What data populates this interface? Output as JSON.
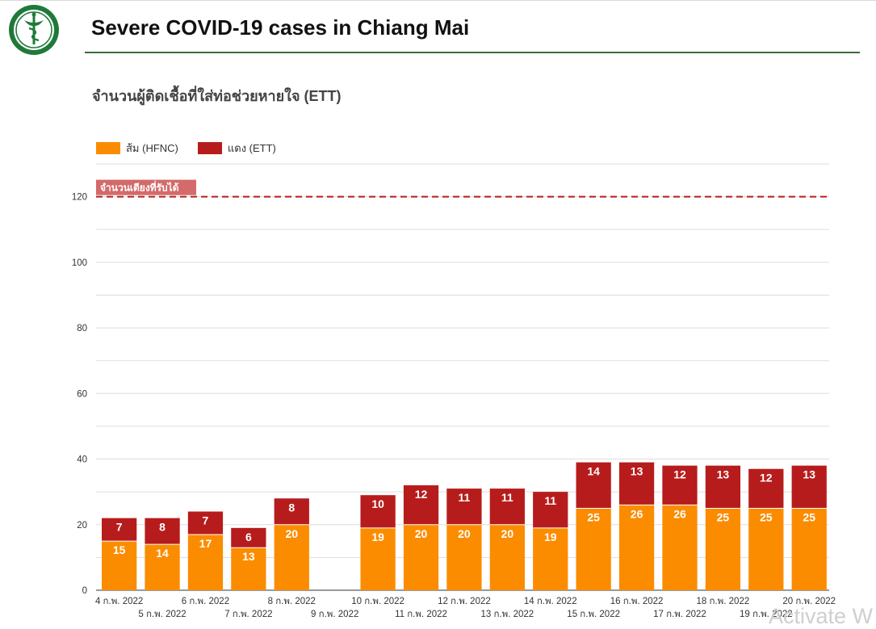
{
  "header": {
    "title": "Severe COVID-19 cases in Chiang Mai",
    "logo_icon": "health-department-caduceus-logo"
  },
  "watermark": "Activate W",
  "colors": {
    "hfnc": "#fb8c00",
    "ett": "#b71c1c",
    "reference_line": "#b71c1c",
    "reference_label_bg": "#d46a6a",
    "rule": "#3a6b35"
  },
  "chart_data": {
    "type": "bar",
    "stacked": true,
    "title": "จำนวนผู้ติดเชื้อที่ใส่ท่อช่วยหายใจ (ETT)",
    "xlabel": "",
    "ylabel": "",
    "ylim": [
      0,
      130
    ],
    "yticks": [
      0,
      20,
      40,
      60,
      80,
      100,
      120
    ],
    "grid": true,
    "legend_position": "top-left",
    "categories": [
      "4 ก.พ. 2022",
      "5 ก.พ. 2022",
      "6 ก.พ. 2022",
      "7 ก.พ. 2022",
      "8 ก.พ. 2022",
      "9 ก.พ. 2022",
      "10 ก.พ. 2022",
      "11 ก.พ. 2022",
      "12 ก.พ. 2022",
      "13 ก.พ. 2022",
      "14 ก.พ. 2022",
      "15 ก.พ. 2022",
      "16 ก.พ. 2022",
      "17 ก.พ. 2022",
      "18 ก.พ. 2022",
      "19 ก.พ. 2022",
      "20 ก.พ. 2022"
    ],
    "series": [
      {
        "name": "ส้ม (HFNC)",
        "color": "#fb8c00",
        "values": [
          15,
          14,
          17,
          13,
          20,
          null,
          19,
          20,
          20,
          20,
          19,
          25,
          26,
          26,
          25,
          25,
          25
        ]
      },
      {
        "name": "แดง (ETT)",
        "color": "#b71c1c",
        "values": [
          7,
          8,
          7,
          6,
          8,
          null,
          10,
          12,
          11,
          11,
          11,
          14,
          13,
          12,
          13,
          12,
          13
        ]
      }
    ],
    "reference_line": {
      "value": 120,
      "label": "จำนวนเตียงที่รับได้",
      "style": "dashed"
    }
  }
}
